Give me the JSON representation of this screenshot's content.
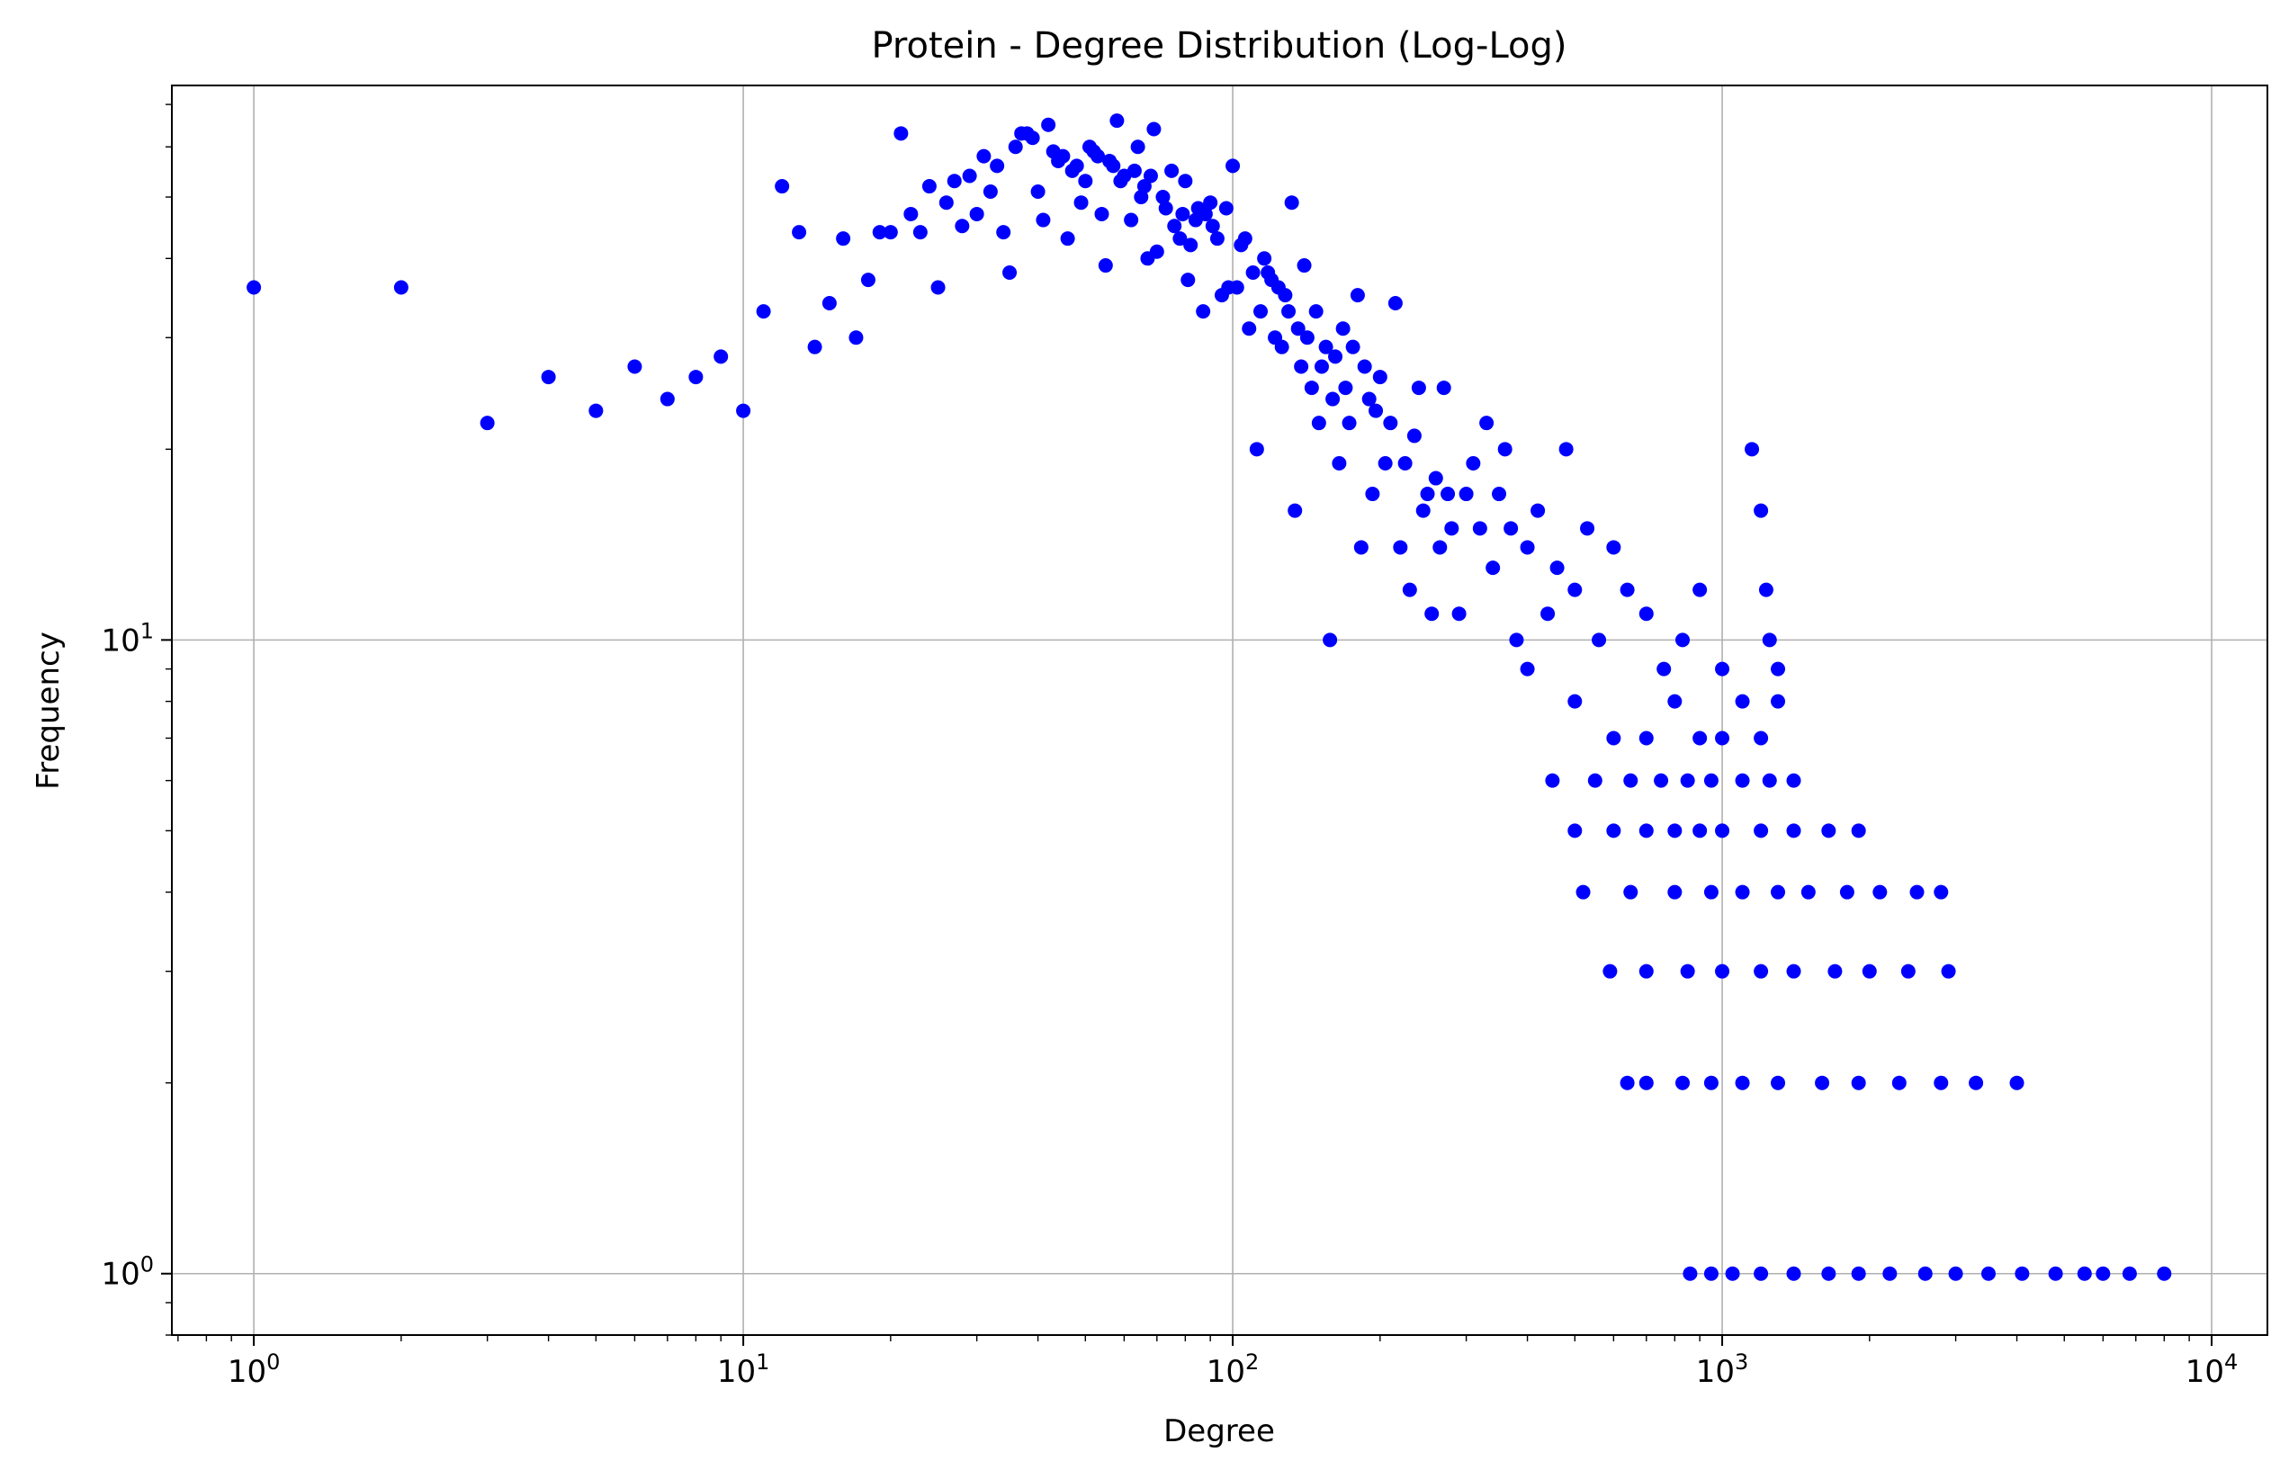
{
  "chart_data": {
    "type": "scatter",
    "title": "Protein - Degree Distribution (Log-Log)",
    "xlabel": "Degree",
    "ylabel": "Frequency",
    "xscale": "log",
    "yscale": "log",
    "xlim": [
      0.68,
      13000
    ],
    "ylim": [
      0.8,
      75
    ],
    "grid": true,
    "marker_color": "#0000ff",
    "x_ticks": [
      {
        "value": 1,
        "base": "10",
        "exp": "0"
      },
      {
        "value": 10,
        "base": "10",
        "exp": "1"
      },
      {
        "value": 100,
        "base": "10",
        "exp": "2"
      },
      {
        "value": 1000,
        "base": "10",
        "exp": "3"
      },
      {
        "value": 10000,
        "base": "10",
        "exp": "4"
      }
    ],
    "y_ticks": [
      {
        "value": 1,
        "base": "10",
        "exp": "0"
      },
      {
        "value": 10,
        "base": "10",
        "exp": "1"
      }
    ],
    "series": [
      {
        "points": [
          [
            1,
            36
          ],
          [
            2,
            36
          ],
          [
            3,
            22
          ],
          [
            4,
            26
          ],
          [
            5,
            23
          ],
          [
            6,
            27
          ],
          [
            7,
            24
          ],
          [
            8,
            26
          ],
          [
            9,
            28
          ],
          [
            10,
            23
          ],
          [
            11,
            33
          ],
          [
            12,
            52
          ],
          [
            13,
            44
          ],
          [
            14,
            29
          ],
          [
            15,
            34
          ],
          [
            16,
            43
          ],
          [
            17,
            30
          ],
          [
            18,
            37
          ],
          [
            19,
            44
          ],
          [
            20,
            44
          ],
          [
            21,
            63
          ],
          [
            22,
            47
          ],
          [
            23,
            44
          ],
          [
            24,
            52
          ],
          [
            25,
            36
          ],
          [
            26,
            49
          ],
          [
            27,
            53
          ],
          [
            28,
            45
          ],
          [
            29,
            54
          ],
          [
            30,
            47
          ],
          [
            31,
            58
          ],
          [
            32,
            51
          ],
          [
            33,
            56
          ],
          [
            34,
            44
          ],
          [
            35,
            38
          ],
          [
            36,
            60
          ],
          [
            37,
            63
          ],
          [
            38,
            63
          ],
          [
            39,
            62
          ],
          [
            40,
            51
          ],
          [
            41,
            46
          ],
          [
            42,
            65
          ],
          [
            43,
            59
          ],
          [
            44,
            57
          ],
          [
            45,
            58
          ],
          [
            46,
            43
          ],
          [
            47,
            55
          ],
          [
            48,
            56
          ],
          [
            49,
            49
          ],
          [
            50,
            53
          ],
          [
            51,
            60
          ],
          [
            52,
            59
          ],
          [
            53,
            58
          ],
          [
            54,
            47
          ],
          [
            55,
            39
          ],
          [
            56,
            57
          ],
          [
            57,
            56
          ],
          [
            58,
            66
          ],
          [
            59,
            53
          ],
          [
            60,
            54
          ],
          [
            62,
            46
          ],
          [
            63,
            55
          ],
          [
            64,
            60
          ],
          [
            65,
            50
          ],
          [
            66,
            52
          ],
          [
            67,
            40
          ],
          [
            68,
            54
          ],
          [
            69,
            64
          ],
          [
            70,
            41
          ],
          [
            72,
            50
          ],
          [
            73,
            48
          ],
          [
            75,
            55
          ],
          [
            76,
            45
          ],
          [
            78,
            43
          ],
          [
            79,
            47
          ],
          [
            80,
            53
          ],
          [
            81,
            37
          ],
          [
            82,
            42
          ],
          [
            84,
            46
          ],
          [
            85,
            48
          ],
          [
            87,
            33
          ],
          [
            88,
            47
          ],
          [
            90,
            49
          ],
          [
            91,
            45
          ],
          [
            93,
            43
          ],
          [
            95,
            35
          ],
          [
            97,
            48
          ],
          [
            98,
            36
          ],
          [
            100,
            56
          ],
          [
            102,
            36
          ],
          [
            104,
            42
          ],
          [
            106,
            43
          ],
          [
            108,
            31
          ],
          [
            110,
            38
          ],
          [
            112,
            20
          ],
          [
            114,
            33
          ],
          [
            116,
            40
          ],
          [
            118,
            38
          ],
          [
            120,
            37
          ],
          [
            122,
            30
          ],
          [
            124,
            36
          ],
          [
            126,
            29
          ],
          [
            128,
            35
          ],
          [
            130,
            33
          ],
          [
            132,
            49
          ],
          [
            134,
            16
          ],
          [
            136,
            31
          ],
          [
            138,
            27
          ],
          [
            140,
            39
          ],
          [
            142,
            30
          ],
          [
            145,
            25
          ],
          [
            148,
            33
          ],
          [
            150,
            22
          ],
          [
            152,
            27
          ],
          [
            155,
            29
          ],
          [
            158,
            10
          ],
          [
            160,
            24
          ],
          [
            162,
            28
          ],
          [
            165,
            19
          ],
          [
            168,
            31
          ],
          [
            170,
            25
          ],
          [
            173,
            22
          ],
          [
            176,
            29
          ],
          [
            180,
            35
          ],
          [
            183,
            14
          ],
          [
            186,
            27
          ],
          [
            190,
            24
          ],
          [
            193,
            17
          ],
          [
            196,
            23
          ],
          [
            200,
            26
          ],
          [
            205,
            19
          ],
          [
            210,
            22
          ],
          [
            215,
            34
          ],
          [
            220,
            14
          ],
          [
            225,
            19
          ],
          [
            230,
            12
          ],
          [
            235,
            21
          ],
          [
            240,
            25
          ],
          [
            245,
            16
          ],
          [
            250,
            17
          ],
          [
            255,
            11
          ],
          [
            260,
            18
          ],
          [
            265,
            14
          ],
          [
            270,
            25
          ],
          [
            275,
            17
          ],
          [
            280,
            15
          ],
          [
            290,
            11
          ],
          [
            300,
            17
          ],
          [
            310,
            19
          ],
          [
            320,
            15
          ],
          [
            330,
            22
          ],
          [
            340,
            13
          ],
          [
            350,
            17
          ],
          [
            360,
            20
          ],
          [
            370,
            15
          ],
          [
            380,
            10
          ],
          [
            400,
            14
          ],
          [
            420,
            16
          ],
          [
            440,
            11
          ],
          [
            460,
            13
          ],
          [
            480,
            20
          ],
          [
            500,
            12
          ],
          [
            530,
            15
          ],
          [
            560,
            10
          ],
          [
            600,
            14
          ],
          [
            640,
            12
          ],
          [
            700,
            11
          ],
          [
            760,
            9
          ],
          [
            830,
            10
          ],
          [
            900,
            12
          ],
          [
            1000,
            9
          ],
          [
            1100,
            8
          ],
          [
            1150,
            20
          ],
          [
            1200,
            16
          ],
          [
            1230,
            12
          ],
          [
            1250,
            10
          ],
          [
            1300,
            9
          ],
          [
            400,
            9
          ],
          [
            500,
            8
          ],
          [
            600,
            7
          ],
          [
            700,
            7
          ],
          [
            800,
            8
          ],
          [
            900,
            7
          ],
          [
            1000,
            7
          ],
          [
            1200,
            7
          ],
          [
            1300,
            8
          ],
          [
            450,
            6
          ],
          [
            550,
            6
          ],
          [
            650,
            6
          ],
          [
            750,
            6
          ],
          [
            850,
            6
          ],
          [
            950,
            6
          ],
          [
            1100,
            6
          ],
          [
            1250,
            6
          ],
          [
            1400,
            6
          ],
          [
            500,
            5
          ],
          [
            600,
            5
          ],
          [
            700,
            5
          ],
          [
            800,
            5
          ],
          [
            900,
            5
          ],
          [
            1000,
            5
          ],
          [
            1200,
            5
          ],
          [
            1400,
            5
          ],
          [
            1650,
            5
          ],
          [
            1900,
            5
          ],
          [
            520,
            4
          ],
          [
            650,
            4
          ],
          [
            800,
            4
          ],
          [
            950,
            4
          ],
          [
            1100,
            4
          ],
          [
            1300,
            4
          ],
          [
            1500,
            4
          ],
          [
            1800,
            4
          ],
          [
            2100,
            4
          ],
          [
            2500,
            4
          ],
          [
            2800,
            4
          ],
          [
            590,
            3
          ],
          [
            700,
            3
          ],
          [
            850,
            3
          ],
          [
            1000,
            3
          ],
          [
            1200,
            3
          ],
          [
            1400,
            3
          ],
          [
            1700,
            3
          ],
          [
            2000,
            3
          ],
          [
            2400,
            3
          ],
          [
            2900,
            3
          ],
          [
            640,
            2
          ],
          [
            700,
            2
          ],
          [
            830,
            2
          ],
          [
            950,
            2
          ],
          [
            1100,
            2
          ],
          [
            1300,
            2
          ],
          [
            1600,
            2
          ],
          [
            1900,
            2
          ],
          [
            2300,
            2
          ],
          [
            2800,
            2
          ],
          [
            3300,
            2
          ],
          [
            4000,
            2
          ],
          [
            860,
            1
          ],
          [
            950,
            1
          ],
          [
            1050,
            1
          ],
          [
            1200,
            1
          ],
          [
            1400,
            1
          ],
          [
            1650,
            1
          ],
          [
            1900,
            1
          ],
          [
            2200,
            1
          ],
          [
            2600,
            1
          ],
          [
            3000,
            1
          ],
          [
            3500,
            1
          ],
          [
            4100,
            1
          ],
          [
            4800,
            1
          ],
          [
            5500,
            1
          ],
          [
            6000,
            1
          ],
          [
            6800,
            1
          ],
          [
            8000,
            1
          ]
        ]
      }
    ]
  }
}
